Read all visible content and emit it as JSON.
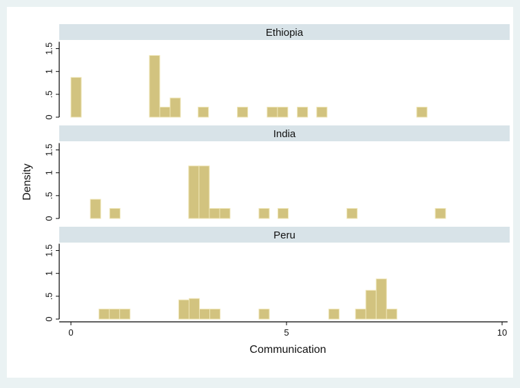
{
  "chart_data": {
    "type": "bar",
    "xlabel": "Communication",
    "ylabel": "Density",
    "xlim": [
      0,
      10
    ],
    "ylim": [
      0,
      1.5
    ],
    "x_ticks": [
      {
        "value": 0,
        "label": "0"
      },
      {
        "value": 5,
        "label": "5"
      },
      {
        "value": 10,
        "label": "10"
      }
    ],
    "y_ticks": [
      {
        "value": 0,
        "label": "0"
      },
      {
        "value": 0.5,
        "label": ".5"
      },
      {
        "value": 1,
        "label": "1"
      },
      {
        "value": 1.5,
        "label": "1.5"
      }
    ],
    "bin_width": 0.24,
    "colors": {
      "bar_fill": "#d2c37f",
      "bar_stroke": "#efe6b8",
      "panel_header": "#d8e3e8",
      "plot_background": "#ffffff",
      "outer_background": "#eaf2f3"
    },
    "panels": [
      {
        "name": "Ethiopia",
        "bins": [
          {
            "x": 0.0,
            "density": 0.87
          },
          {
            "x": 1.82,
            "density": 1.35
          },
          {
            "x": 2.06,
            "density": 0.22
          },
          {
            "x": 2.3,
            "density": 0.42
          },
          {
            "x": 2.95,
            "density": 0.22
          },
          {
            "x": 3.86,
            "density": 0.22
          },
          {
            "x": 4.55,
            "density": 0.22
          },
          {
            "x": 4.79,
            "density": 0.22
          },
          {
            "x": 5.25,
            "density": 0.22
          },
          {
            "x": 5.7,
            "density": 0.22
          },
          {
            "x": 8.02,
            "density": 0.22
          }
        ]
      },
      {
        "name": "India",
        "bins": [
          {
            "x": 0.45,
            "density": 0.42
          },
          {
            "x": 0.9,
            "density": 0.22
          },
          {
            "x": 2.73,
            "density": 1.15
          },
          {
            "x": 2.97,
            "density": 1.15
          },
          {
            "x": 3.21,
            "density": 0.22
          },
          {
            "x": 3.45,
            "density": 0.22
          },
          {
            "x": 4.36,
            "density": 0.22
          },
          {
            "x": 4.8,
            "density": 0.22
          },
          {
            "x": 6.4,
            "density": 0.22
          },
          {
            "x": 8.45,
            "density": 0.22
          }
        ]
      },
      {
        "name": "Peru",
        "bins": [
          {
            "x": 0.65,
            "density": 0.22
          },
          {
            "x": 0.89,
            "density": 0.22
          },
          {
            "x": 1.13,
            "density": 0.22
          },
          {
            "x": 2.5,
            "density": 0.42
          },
          {
            "x": 2.74,
            "density": 0.45
          },
          {
            "x": 2.98,
            "density": 0.22
          },
          {
            "x": 3.22,
            "density": 0.22
          },
          {
            "x": 4.36,
            "density": 0.22
          },
          {
            "x": 5.98,
            "density": 0.22
          },
          {
            "x": 6.6,
            "density": 0.22
          },
          {
            "x": 6.84,
            "density": 0.63
          },
          {
            "x": 7.08,
            "density": 0.88
          },
          {
            "x": 7.32,
            "density": 0.22
          }
        ]
      }
    ]
  }
}
